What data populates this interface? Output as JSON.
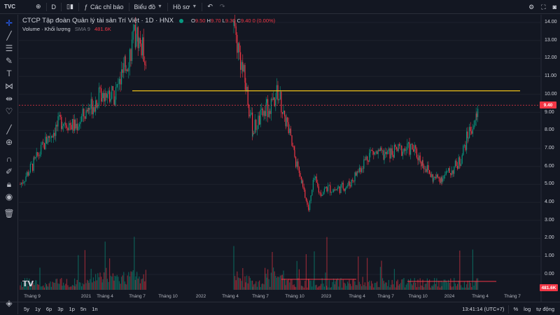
{
  "toolbar": {
    "logo": "TVC",
    "add_symbol_icon": "plus-circle-icon",
    "interval": "D",
    "compare_icon": "candles-icon",
    "indicators_label": "Các chỉ báo",
    "chart_type_label": "Biểu đồ",
    "profile_label": "Hồ sơ",
    "undo_icon": "undo-icon",
    "redo_icon": "redo-icon",
    "settings_icon": "gear-icon",
    "fullscreen_icon": "fullscreen-icon",
    "snapshot_icon": "camera-icon"
  },
  "left_tools": [
    "crosshair-icon",
    "trend-line-icon",
    "fib-icon",
    "brush-icon",
    "text-icon",
    "pattern-icon",
    "ruler-measure-icon",
    "heart-icon",
    "ruler-icon",
    "zoom-icon",
    "magnet-icon",
    "lock-drawings-icon",
    "lock-icon",
    "eye-icon",
    "trash-icon"
  ],
  "legend": {
    "symbol": "CTCP Tập đoàn Quản lý tài sản Trí Việt · 1D · HNX",
    "o_key": "O",
    "o_val": "9.50",
    "h_key": "H",
    "h_val": "9.70",
    "l_key": "L",
    "l_val": "9.30",
    "c_key": "C",
    "c_val": "9.40 0 (0.00%)",
    "volume_label": "Volume · Khối lượng",
    "volume_sma": "SMA 9",
    "volume_value": "481.6K"
  },
  "price_scale": [
    "14.00",
    "13.00",
    "12.00",
    "11.00",
    "10.00",
    "9.00",
    "8.00",
    "7.00",
    "6.00",
    "5.00",
    "4.00",
    "3.00",
    "2.00",
    "1.00",
    "0.00"
  ],
  "current_price": "9.40",
  "current_volume": "481.6K",
  "time_axis": [
    "Tháng 9",
    "2021",
    "Tháng 4",
    "Tháng 7",
    "Tháng 10",
    "2022",
    "Tháng 4",
    "Tháng 7",
    "Tháng 10",
    "2023",
    "Tháng 4",
    "Tháng 7",
    "Tháng 10",
    "2024",
    "Tháng 4",
    "Tháng 7"
  ],
  "bottom": {
    "ranges": [
      "5y",
      "1y",
      "6p",
      "3p",
      "1p",
      "5n",
      "1n"
    ],
    "clock": "13:41:14 (UTC+7)",
    "percent": "%",
    "log": "log",
    "auto": "tự động"
  },
  "colors": {
    "up": "#089981",
    "down": "#f23645",
    "hline": "#f0c419",
    "bg": "#131722",
    "grid": "#1e222d"
  },
  "chart_data": {
    "type": "candlestick",
    "title": "CTCP Tập đoàn Quản lý tài sản Trí Việt · 1D · HNX",
    "ylim": [
      0,
      14.5
    ],
    "horizontal_line": 10.2,
    "current_price": 9.4,
    "price_path": [
      {
        "t": "Tháng 9 2020",
        "v": 5.0
      },
      {
        "t": "Tháng 10 2020",
        "v": 6.2
      },
      {
        "t": "Tháng 11 2020",
        "v": 7.5
      },
      {
        "t": "Tháng 12 2020",
        "v": 8.6
      },
      {
        "t": "2021",
        "v": 8.2
      },
      {
        "t": "Tháng 2 2021",
        "v": 9.2
      },
      {
        "t": "Tháng 3 2021",
        "v": 10.2
      },
      {
        "t": "Tháng 4 2021",
        "v": 10.0
      },
      {
        "t": "Tháng 5 2021",
        "v": 11.5
      },
      {
        "t": "Tháng 6 2021",
        "v": 13.4
      },
      {
        "t": "Tháng 7 2021",
        "v": 12.0
      },
      {
        "t": "Tháng 3 2022",
        "v": 13.8
      },
      {
        "t": "Tháng 4 2022",
        "v": 10.5
      },
      {
        "t": "Tháng 5 2022",
        "v": 8.0
      },
      {
        "t": "Tháng 6 2022",
        "v": 9.2
      },
      {
        "t": "Tháng 7 2022",
        "v": 10.1
      },
      {
        "t": "Tháng 8 2022",
        "v": 8.5
      },
      {
        "t": "Tháng 9 2022",
        "v": 6.5
      },
      {
        "t": "Tháng 10 2022",
        "v": 5.0
      },
      {
        "t": "Tháng 11 2022",
        "v": 3.6
      },
      {
        "t": "Tháng 12 2022",
        "v": 5.3
      },
      {
        "t": "2023",
        "v": 4.5
      },
      {
        "t": "Tháng 2 2023",
        "v": 4.8
      },
      {
        "t": "Tháng 3 2023",
        "v": 4.7
      },
      {
        "t": "Tháng 4 2023",
        "v": 5.0
      },
      {
        "t": "Tháng 5 2023",
        "v": 6.8
      },
      {
        "t": "Tháng 6 2023",
        "v": 6.6
      },
      {
        "t": "Tháng 7 2023",
        "v": 6.9
      },
      {
        "t": "Tháng 8 2023",
        "v": 7.0
      },
      {
        "t": "Tháng 9 2023",
        "v": 6.2
      },
      {
        "t": "Tháng 10 2023",
        "v": 5.3
      },
      {
        "t": "Tháng 11 2023",
        "v": 5.4
      },
      {
        "t": "Tháng 12 2023",
        "v": 5.7
      },
      {
        "t": "2024",
        "v": 6.3
      },
      {
        "t": "Tháng 2 2024",
        "v": 7.8
      },
      {
        "t": "Tháng 3 2024",
        "v": 8.7
      },
      {
        "t": "Tháng 4 2024",
        "v": 9.4
      }
    ]
  }
}
